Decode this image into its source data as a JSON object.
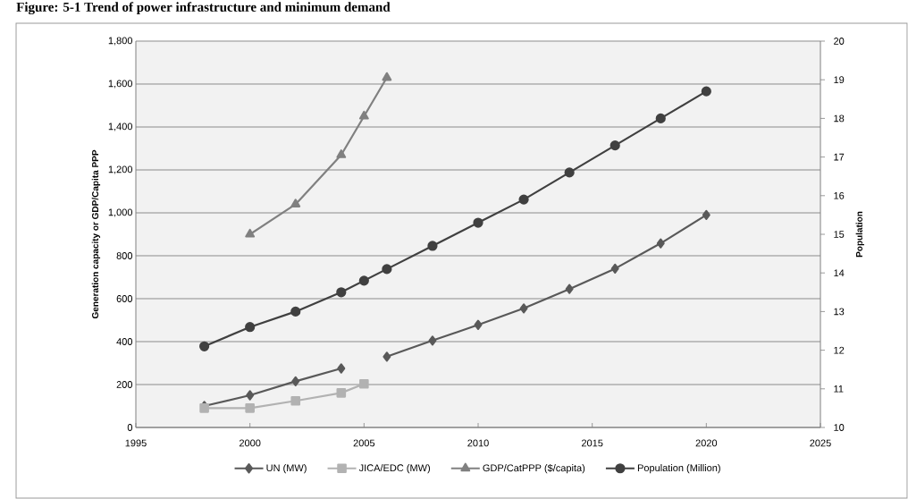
{
  "chart_data": {
    "type": "line",
    "title": "Figure: 5-1 Trend of power infrastructure and minimum demand",
    "ylabel": "Generation capacity or GDP/Capita PPP",
    "y2label": "Population",
    "xlim": [
      1995,
      2025
    ],
    "xticks": [
      1995,
      2000,
      2005,
      2010,
      2015,
      2020,
      2025
    ],
    "ylim": [
      0,
      1800
    ],
    "yticks": [
      0,
      200,
      400,
      600,
      800,
      {
        "value": 1000,
        "label": "1,000"
      },
      {
        "value": 1200,
        "label": "1,200"
      },
      {
        "value": 1400,
        "label": "1,400"
      },
      {
        "value": 1600,
        "label": "1,600"
      },
      {
        "value": 1800,
        "label": "1,800"
      }
    ],
    "y2lim": [
      10,
      20
    ],
    "y2ticks": [
      10,
      11,
      12,
      13,
      14,
      15,
      16,
      17,
      18,
      19,
      20
    ],
    "grid": "y",
    "legend": "bottom",
    "line_style": "solid",
    "series": [
      {
        "name": "UN (MW)",
        "color": "#595959",
        "marker": "diamond",
        "x": [
          1998,
          2000,
          2002,
          2004,
          2005,
          2006,
          2008,
          2010,
          2012,
          2014,
          2016,
          2018,
          2020
        ],
        "values": [
          100,
          150,
          215,
          275,
          null,
          330,
          405,
          478,
          555,
          645,
          740,
          858,
          990
        ]
      },
      {
        "name": "JICA/EDC (MW)",
        "color": "#b2b2b2",
        "marker": "square",
        "x": [
          1998,
          2000,
          2002,
          2004,
          2005
        ],
        "values": [
          90,
          90,
          124,
          161,
          203
        ]
      },
      {
        "name": "GDP/CatPPP ($/capita)",
        "color": "#808080",
        "marker": "triangle",
        "x": [
          2000,
          2002,
          2004,
          2005,
          2006
        ],
        "values": [
          900,
          1040,
          1270,
          1450,
          1630
        ]
      },
      {
        "name": "Population (Million)",
        "color": "#404040",
        "marker": "circle",
        "axis": "y2",
        "x": [
          1998,
          2000,
          2002,
          2004,
          2005,
          2006,
          2008,
          2010,
          2012,
          2014,
          2016,
          2018,
          2020
        ],
        "values": [
          12.1,
          12.6,
          13.0,
          13.5,
          13.8,
          14.1,
          14.7,
          15.3,
          15.9,
          16.6,
          17.3,
          18.0,
          18.7
        ]
      }
    ]
  }
}
